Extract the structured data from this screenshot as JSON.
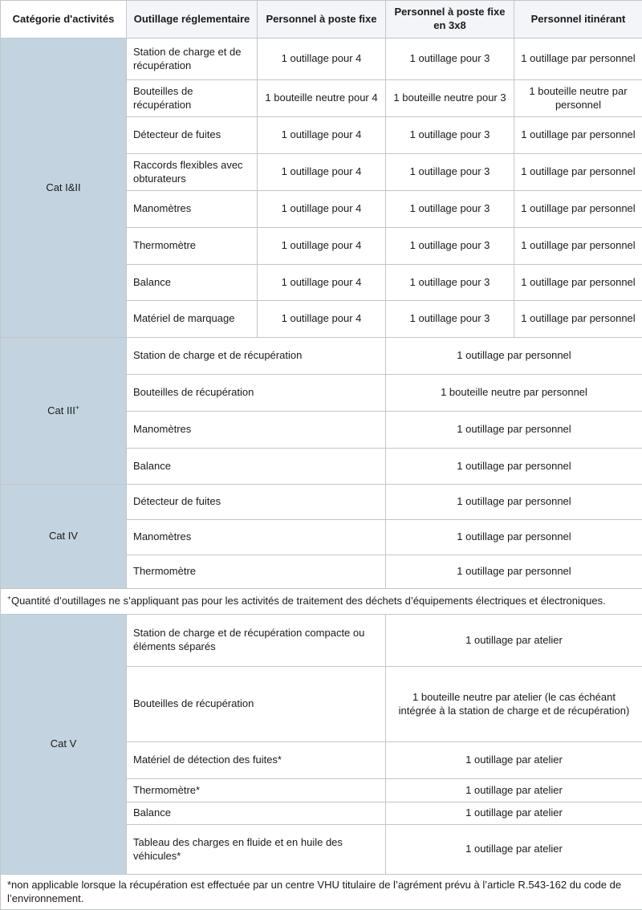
{
  "header": {
    "columns": [
      "Catégorie d'activités",
      "Outillage réglementaire",
      "Personnel à poste fixe",
      "Personnel à poste fixe en 3x8",
      "Personnel itinérant"
    ]
  },
  "colors": {
    "category_bg": "#c3d4e0",
    "header_bg": "#f3f5f9",
    "border": "#c2c6ca"
  },
  "sections": [
    {
      "type": "category",
      "category": "Cat I&II",
      "category_marker": "",
      "layout": "three-col",
      "rows": [
        {
          "tool": "Station de charge et de récupération",
          "fixed": "1 outillage pour 4",
          "shift3x8": "1 outillage pour 3",
          "itinerant": "1 outillage par personnel"
        },
        {
          "tool": "Bouteilles de récupération",
          "fixed": "1 bouteille neutre pour 4",
          "shift3x8": "1 bouteille neutre pour 3",
          "itinerant": "1 bouteille neutre par personnel"
        },
        {
          "tool": "Détecteur de fuites",
          "fixed": "1 outillage pour 4",
          "shift3x8": "1 outillage pour 3",
          "itinerant": "1 outillage par personnel"
        },
        {
          "tool": "Raccords flexibles avec obturateurs",
          "fixed": "1 outillage pour 4",
          "shift3x8": "1 outillage pour 3",
          "itinerant": "1 outillage par personnel"
        },
        {
          "tool": "Manomètres",
          "fixed": "1 outillage pour 4",
          "shift3x8": "1 outillage pour 3",
          "itinerant": "1 outillage par personnel"
        },
        {
          "tool": "Thermomètre",
          "fixed": "1 outillage pour 4",
          "shift3x8": "1 outillage pour 3",
          "itinerant": "1 outillage par personnel"
        },
        {
          "tool": "Balance",
          "fixed": "1 outillage pour 4",
          "shift3x8": "1 outillage pour 3",
          "itinerant": "1 outillage par personnel"
        },
        {
          "tool": "Matériel de marquage",
          "fixed": "1 outillage pour 4",
          "shift3x8": "1 outillage pour 3",
          "itinerant": "1 outillage par personnel"
        }
      ]
    },
    {
      "type": "category",
      "category": "Cat III",
      "category_marker": "+",
      "layout": "merged",
      "rows": [
        {
          "tool": "Station de charge et de récupération",
          "value": "1 outillage par personnel"
        },
        {
          "tool": "Bouteilles de récupération",
          "value": "1 bouteille neutre par personnel"
        },
        {
          "tool": "Manomètres",
          "value": "1 outillage par personnel"
        },
        {
          "tool": "Balance",
          "value": "1 outillage par personnel"
        }
      ]
    },
    {
      "type": "category",
      "category": "Cat IV",
      "category_marker": "",
      "layout": "merged",
      "rows": [
        {
          "tool": "Détecteur de fuites",
          "value": "1 outillage par personnel"
        },
        {
          "tool": "Manomètres",
          "value": "1 outillage par personnel"
        },
        {
          "tool": "Thermomètre",
          "value": "1 outillage par personnel"
        }
      ]
    },
    {
      "type": "note",
      "marker": "+",
      "text": "Quantité d’outillages ne s’appliquant pas pour les activités de traitement des déchets d’équipements électriques et électroniques."
    },
    {
      "type": "category",
      "category": "Cat V",
      "category_marker": "",
      "layout": "merged",
      "rows": [
        {
          "tool": "Station de charge et de récupération compacte ou éléments séparés",
          "value": "1 outillage par atelier"
        },
        {
          "tool": "Bouteilles de récupération",
          "value": "1 bouteille neutre par atelier (le cas échéant intégrée à la station de charge et de récupération)"
        },
        {
          "tool": "Matériel de détection des fuites*",
          "value": "1 outillage par atelier"
        },
        {
          "tool": "Thermomètre*",
          "value": "1 outillage par atelier"
        },
        {
          "tool": "Balance",
          "value": "1 outillage par atelier"
        },
        {
          "tool": "Tableau des charges en fluide et en huile des véhicules*",
          "value": "1 outillage par atelier"
        }
      ]
    },
    {
      "type": "note",
      "marker": "",
      "text": "*non applicable lorsque la récupération est effectuée par un centre VHU titulaire de l’agrément prévu à l’article R.543-162 du code de l’environnement."
    }
  ]
}
